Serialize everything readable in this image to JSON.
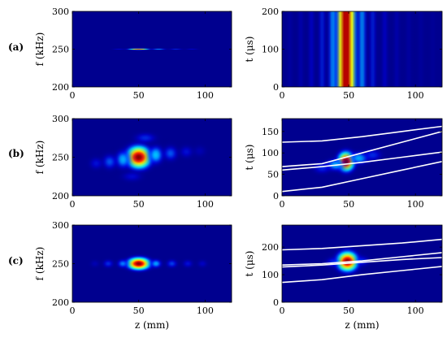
{
  "chart_data": [
    {
      "id": "a-left",
      "type": "heatmap",
      "row": "(a)",
      "col": "left",
      "ylabel": "f (kHz)",
      "xlabel": "",
      "xlim": [
        0,
        120
      ],
      "ylim": [
        200,
        300
      ],
      "xticks": [
        0,
        50,
        100
      ],
      "yticks": [
        200,
        250,
        300
      ],
      "blobs": [
        {
          "x": 50,
          "y": 250,
          "sx": 5,
          "sy": 0.5,
          "amp": 0.85
        },
        {
          "x": 65,
          "y": 250,
          "sx": 4,
          "sy": 0.5,
          "amp": 0.3
        },
        {
          "x": 78,
          "y": 250,
          "sx": 4,
          "sy": 0.5,
          "amp": 0.2
        },
        {
          "x": 90,
          "y": 250,
          "sx": 4,
          "sy": 0.5,
          "amp": 0.15
        },
        {
          "x": 35,
          "y": 250,
          "sx": 4,
          "sy": 0.5,
          "amp": 0.15
        }
      ],
      "curves": []
    },
    {
      "id": "a-right",
      "type": "heatmap",
      "row": "(a)",
      "col": "right",
      "ylabel": "t (μs)",
      "xlabel": "",
      "xlim": [
        0,
        120
      ],
      "ylim": [
        0,
        200
      ],
      "xticks": [
        0,
        50,
        100
      ],
      "yticks": [
        0,
        100,
        200
      ],
      "stripes": [
        {
          "x": 48,
          "s": 4.5,
          "amp": 1.0
        },
        {
          "x": 38,
          "s": 2.5,
          "amp": 0.28
        },
        {
          "x": 60,
          "s": 2.5,
          "amp": 0.28
        },
        {
          "x": 30,
          "s": 2.0,
          "amp": 0.18
        },
        {
          "x": 68,
          "s": 2.0,
          "amp": 0.18
        },
        {
          "x": 22,
          "s": 2.0,
          "amp": 0.13
        },
        {
          "x": 77,
          "s": 2.0,
          "amp": 0.13
        },
        {
          "x": 14,
          "s": 2.0,
          "amp": 0.1
        },
        {
          "x": 86,
          "s": 2.0,
          "amp": 0.1
        },
        {
          "x": 6,
          "s": 2.0,
          "amp": 0.08
        },
        {
          "x": 95,
          "s": 2.0,
          "amp": 0.08
        },
        {
          "x": 104,
          "s": 2.0,
          "amp": 0.07
        },
        {
          "x": 113,
          "s": 2.0,
          "amp": 0.06
        }
      ],
      "curves": []
    },
    {
      "id": "b-left",
      "type": "heatmap",
      "row": "(b)",
      "col": "left",
      "ylabel": "f (kHz)",
      "xlabel": "",
      "xlim": [
        0,
        120
      ],
      "ylim": [
        200,
        300
      ],
      "xticks": [
        0,
        50,
        100
      ],
      "yticks": [
        200,
        250,
        300
      ],
      "blobs": [
        {
          "x": 50,
          "y": 250,
          "sx": 6,
          "sy": 9,
          "amp": 1.0
        },
        {
          "x": 38,
          "y": 247,
          "sx": 4,
          "sy": 8,
          "amp": 0.3
        },
        {
          "x": 63,
          "y": 253,
          "sx": 4,
          "sy": 8,
          "amp": 0.32
        },
        {
          "x": 28,
          "y": 244,
          "sx": 4,
          "sy": 7,
          "amp": 0.22
        },
        {
          "x": 74,
          "y": 255,
          "sx": 4,
          "sy": 7,
          "amp": 0.22
        },
        {
          "x": 18,
          "y": 242,
          "sx": 4,
          "sy": 6,
          "amp": 0.15
        },
        {
          "x": 86,
          "y": 257,
          "sx": 4,
          "sy": 6,
          "amp": 0.15
        },
        {
          "x": 96,
          "y": 258,
          "sx": 4,
          "sy": 6,
          "amp": 0.1
        },
        {
          "x": 55,
          "y": 275,
          "sx": 6,
          "sy": 5,
          "amp": 0.18
        },
        {
          "x": 45,
          "y": 225,
          "sx": 6,
          "sy": 5,
          "amp": 0.14
        }
      ],
      "curves": []
    },
    {
      "id": "b-right",
      "type": "heatmap",
      "row": "(b)",
      "col": "right",
      "ylabel": "t (μs)",
      "xlabel": "",
      "xlim": [
        0,
        120
      ],
      "ylim": [
        0,
        180
      ],
      "xticks": [
        0,
        50,
        100
      ],
      "yticks": [
        0,
        50,
        100,
        150
      ],
      "blobs": [
        {
          "x": 48,
          "y": 80,
          "sx": 4,
          "sy": 14,
          "amp": 1.0
        },
        {
          "x": 40,
          "y": 72,
          "sx": 5,
          "sy": 10,
          "amp": 0.3
        },
        {
          "x": 58,
          "y": 88,
          "sx": 5,
          "sy": 10,
          "amp": 0.3
        },
        {
          "x": 30,
          "y": 65,
          "sx": 5,
          "sy": 10,
          "amp": 0.18
        },
        {
          "x": 68,
          "y": 95,
          "sx": 5,
          "sy": 10,
          "amp": 0.18
        }
      ],
      "curves": [
        {
          "x": [
            0,
            30,
            60,
            90,
            120
          ],
          "y": [
            125,
            128,
            138,
            150,
            162
          ]
        },
        {
          "x": [
            0,
            30,
            60,
            90,
            120
          ],
          "y": [
            68,
            75,
            100,
            125,
            150
          ]
        },
        {
          "x": [
            0,
            30,
            60,
            90,
            120
          ],
          "y": [
            60,
            68,
            78,
            90,
            102
          ]
        },
        {
          "x": [
            0,
            30,
            60,
            90,
            120
          ],
          "y": [
            10,
            20,
            40,
            60,
            80
          ]
        }
      ]
    },
    {
      "id": "c-left",
      "type": "heatmap",
      "row": "(c)",
      "col": "left",
      "ylabel": "f (kHz)",
      "xlabel": "z (mm)",
      "xlim": [
        0,
        120
      ],
      "ylim": [
        200,
        300
      ],
      "xticks": [
        0,
        50,
        100
      ],
      "yticks": [
        200,
        250,
        300
      ],
      "blobs": [
        {
          "x": 50,
          "y": 250,
          "sx": 5.5,
          "sy": 5,
          "amp": 1.0
        },
        {
          "x": 38,
          "y": 250,
          "sx": 3,
          "sy": 4,
          "amp": 0.25
        },
        {
          "x": 63,
          "y": 250,
          "sx": 3,
          "sy": 4,
          "amp": 0.28
        },
        {
          "x": 27,
          "y": 250,
          "sx": 3,
          "sy": 4,
          "amp": 0.18
        },
        {
          "x": 75,
          "y": 250,
          "sx": 3,
          "sy": 4,
          "amp": 0.2
        },
        {
          "x": 87,
          "y": 250,
          "sx": 3,
          "sy": 4,
          "amp": 0.15
        },
        {
          "x": 98,
          "y": 250,
          "sx": 3,
          "sy": 4,
          "amp": 0.12
        },
        {
          "x": 17,
          "y": 250,
          "sx": 3,
          "sy": 4,
          "amp": 0.1
        }
      ],
      "curves": []
    },
    {
      "id": "c-right",
      "type": "heatmap",
      "row": "(c)",
      "col": "right",
      "ylabel": "t (μs)",
      "xlabel": "z (mm)",
      "xlim": [
        0,
        120
      ],
      "ylim": [
        0,
        280
      ],
      "xticks": [
        0,
        50,
        100
      ],
      "yticks": [
        0,
        100,
        200
      ],
      "blobs": [
        {
          "x": 49,
          "y": 148,
          "sx": 5,
          "sy": 22,
          "amp": 1.0
        },
        {
          "x": 38,
          "y": 145,
          "sx": 4,
          "sy": 14,
          "amp": 0.18
        },
        {
          "x": 60,
          "y": 150,
          "sx": 4,
          "sy": 14,
          "amp": 0.18
        }
      ],
      "curves": [
        {
          "x": [
            0,
            30,
            60,
            90,
            120
          ],
          "y": [
            190,
            195,
            205,
            215,
            228
          ]
        },
        {
          "x": [
            0,
            30,
            60,
            90,
            120
          ],
          "y": [
            135,
            140,
            150,
            165,
            180
          ]
        },
        {
          "x": [
            0,
            30,
            60,
            90,
            120
          ],
          "y": [
            128,
            135,
            145,
            155,
            162
          ]
        },
        {
          "x": [
            0,
            30,
            60,
            90,
            120
          ],
          "y": [
            72,
            82,
            100,
            115,
            130
          ]
        }
      ]
    }
  ]
}
